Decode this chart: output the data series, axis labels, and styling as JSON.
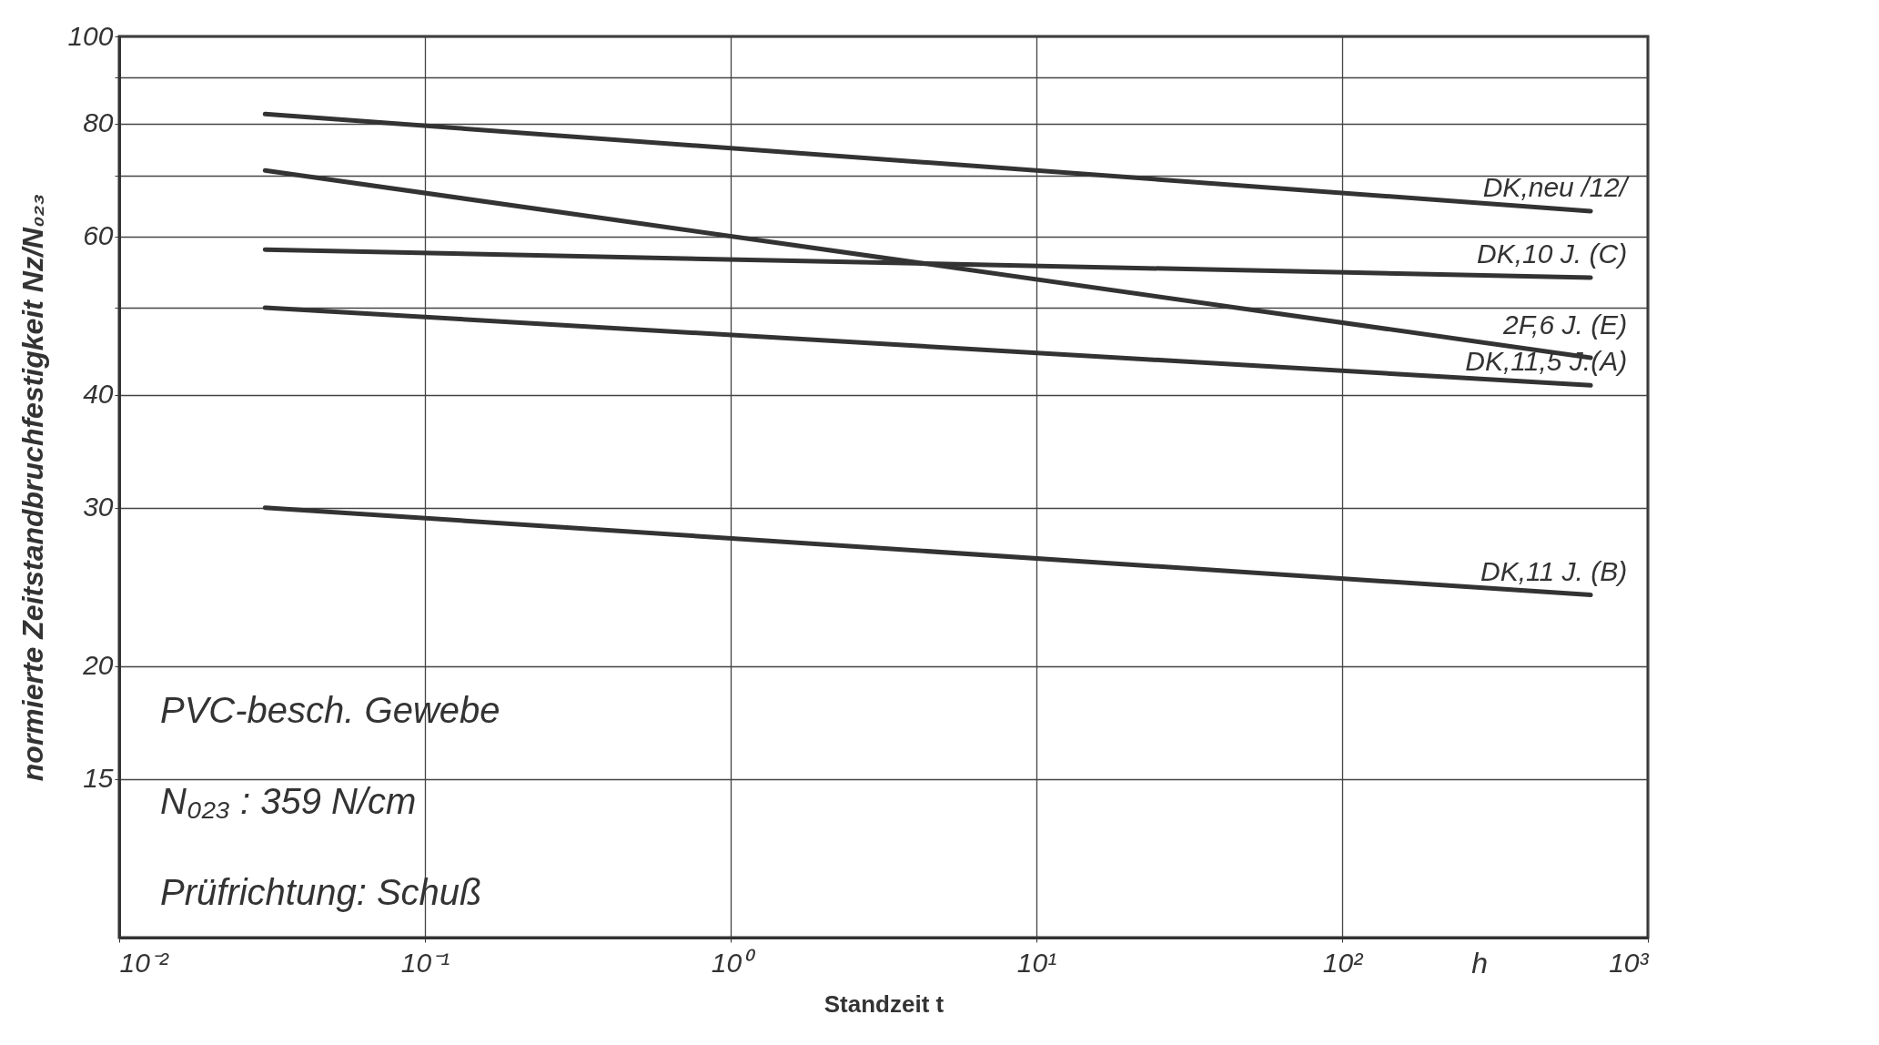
{
  "chart_data": {
    "type": "line",
    "xlabel": "Standzeit t",
    "ylabel": "normierte Zeitstandbruchfestigkeit Nz/N₀₂₃",
    "x": [
      0.03,
      650
    ],
    "series": [
      {
        "name": "DK,neu /12/",
        "color": "#333333",
        "values": [
          82,
          64
        ]
      },
      {
        "name": "DK,10 J. (C)",
        "color": "#333333",
        "values": [
          58,
          54
        ]
      },
      {
        "name": "2F,6 J. (E)",
        "color": "#333333",
        "values": [
          71,
          44
        ]
      },
      {
        "name": "DK,11,5 J.(A)",
        "color": "#333333",
        "values": [
          50,
          41
        ]
      },
      {
        "name": "DK,11 J. (B)",
        "color": "#333333",
        "values": [
          30,
          24
        ]
      }
    ],
    "log": "xy",
    "xlim": [
      0.01,
      1000
    ],
    "ylim": [
      10,
      100
    ],
    "xticks": [
      {
        "value": 0.01,
        "label": "10⁻²"
      },
      {
        "value": 0.1,
        "label": "10⁻¹"
      },
      {
        "value": 1,
        "label": "10⁰"
      },
      {
        "value": 10,
        "label": "10¹"
      },
      {
        "value": 100,
        "label": "10²"
      },
      {
        "value": 1000,
        "label": "10³"
      }
    ],
    "yticks": [
      15,
      20,
      30,
      40,
      {
        "value": 50,
        "label": null
      },
      60,
      {
        "value": 70,
        "label": null
      },
      80,
      {
        "value": 90,
        "label": null
      },
      100
    ],
    "grid": true,
    "legend": false,
    "marker": "none",
    "line_style": "solid",
    "annotations": [
      "PVC-besch. Gewebe",
      "N₀₂₃ : 359 N/cm",
      "Prüfrichtung: Schuß",
      "h"
    ]
  }
}
